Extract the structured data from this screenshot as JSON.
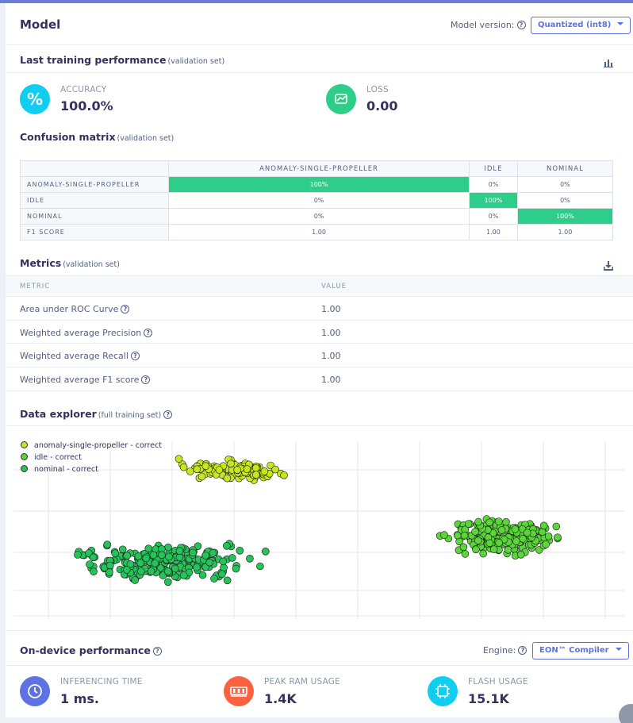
{
  "header": {
    "title": "Model",
    "version_label": "Model version:",
    "version_value": "Quantized (int8)"
  },
  "training": {
    "title": "Last training performance",
    "subtitle": "(validation set)",
    "chart_icon": "bar-chart-icon",
    "accuracy": {
      "label": "ACCURACY",
      "value": "100.0%",
      "icon": "percent-icon",
      "color": "#11cdef"
    },
    "loss": {
      "label": "LOSS",
      "value": "0.00",
      "icon": "trend-icon",
      "color": "#2dce89"
    }
  },
  "confusion": {
    "title": "Confusion matrix",
    "subtitle": "(validation set)",
    "columns": [
      "ANOMALY-SINGLE-PROPELLER",
      "IDLE",
      "NOMINAL"
    ],
    "rows": [
      {
        "label": "ANOMALY-SINGLE-PROPELLER",
        "cells": [
          "100%",
          "0%",
          "0%"
        ]
      },
      {
        "label": "IDLE",
        "cells": [
          "0%",
          "100%",
          "0%"
        ]
      },
      {
        "label": "NOMINAL",
        "cells": [
          "0%",
          "0%",
          "100%"
        ]
      },
      {
        "label": "F1 SCORE",
        "cells": [
          "1.00",
          "1.00",
          "1.00"
        ]
      }
    ]
  },
  "metrics": {
    "title": "Metrics",
    "subtitle": "(validation set)",
    "download_icon": "download-icon",
    "col_metric": "METRIC",
    "col_value": "VALUE",
    "rows": [
      {
        "name": "Area under ROC Curve",
        "value": "1.00"
      },
      {
        "name": "Weighted average Precision",
        "value": "1.00"
      },
      {
        "name": "Weighted average Recall",
        "value": "1.00"
      },
      {
        "name": "Weighted average F1 score",
        "value": "1.00"
      }
    ]
  },
  "explorer": {
    "title": "Data explorer",
    "subtitle": "(full training set)",
    "legend": [
      {
        "name": "anomaly-single-propeller - correct",
        "color": "#c8e61e"
      },
      {
        "name": "idle - correct",
        "color": "#5ad63a"
      },
      {
        "name": "nominal - correct",
        "color": "#26c25a"
      }
    ]
  },
  "chart_data": {
    "type": "scatter",
    "title": "",
    "xlabel": "",
    "ylabel": "",
    "grid": true,
    "legend_position": "top-left",
    "series": [
      {
        "name": "anomaly-single-propeller - correct",
        "color": "#c8e61e"
      },
      {
        "name": "idle - correct",
        "color": "#5ad63a"
      },
      {
        "name": "nominal - correct",
        "color": "#26c25a"
      }
    ]
  },
  "device": {
    "title": "On-device performance",
    "engine_label": "Engine:",
    "engine_value": "EON™ Compiler",
    "inferencing": {
      "label": "INFERENCING TIME",
      "value": "1 ms.",
      "icon": "clock-icon",
      "color": "#5e72e4"
    },
    "ram": {
      "label": "PEAK RAM USAGE",
      "value": "1.4K",
      "icon": "ram-icon",
      "color": "#fb6340"
    },
    "flash": {
      "label": "FLASH USAGE",
      "value": "15.1K",
      "icon": "chip-icon",
      "color": "#11cdef"
    }
  }
}
